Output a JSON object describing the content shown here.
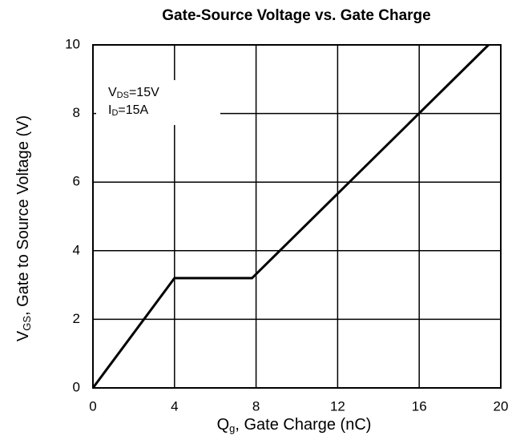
{
  "chart_data": {
    "type": "line",
    "title": "Gate-Source Voltage  vs. Gate Charge",
    "xlabel": [
      "Q",
      "g",
      ", Gate Charge (nC)"
    ],
    "ylabel": [
      "V",
      "GS",
      ", Gate to Source Voltage (V)"
    ],
    "annotations": [
      [
        "V",
        "DS",
        "=15V"
      ],
      [
        "I",
        "D",
        "=15A"
      ]
    ],
    "x": [
      0,
      4,
      7.8,
      19.4
    ],
    "series": [
      {
        "name": "VGS",
        "color": "#000000",
        "values": [
          0,
          3.2,
          3.2,
          10
        ]
      }
    ],
    "xlim": [
      0,
      20
    ],
    "xticks": [
      0,
      4,
      8,
      12,
      16,
      20
    ],
    "ylim": [
      0,
      10
    ],
    "yticks": [
      0,
      2,
      4,
      6,
      8,
      10
    ],
    "grid": true
  }
}
